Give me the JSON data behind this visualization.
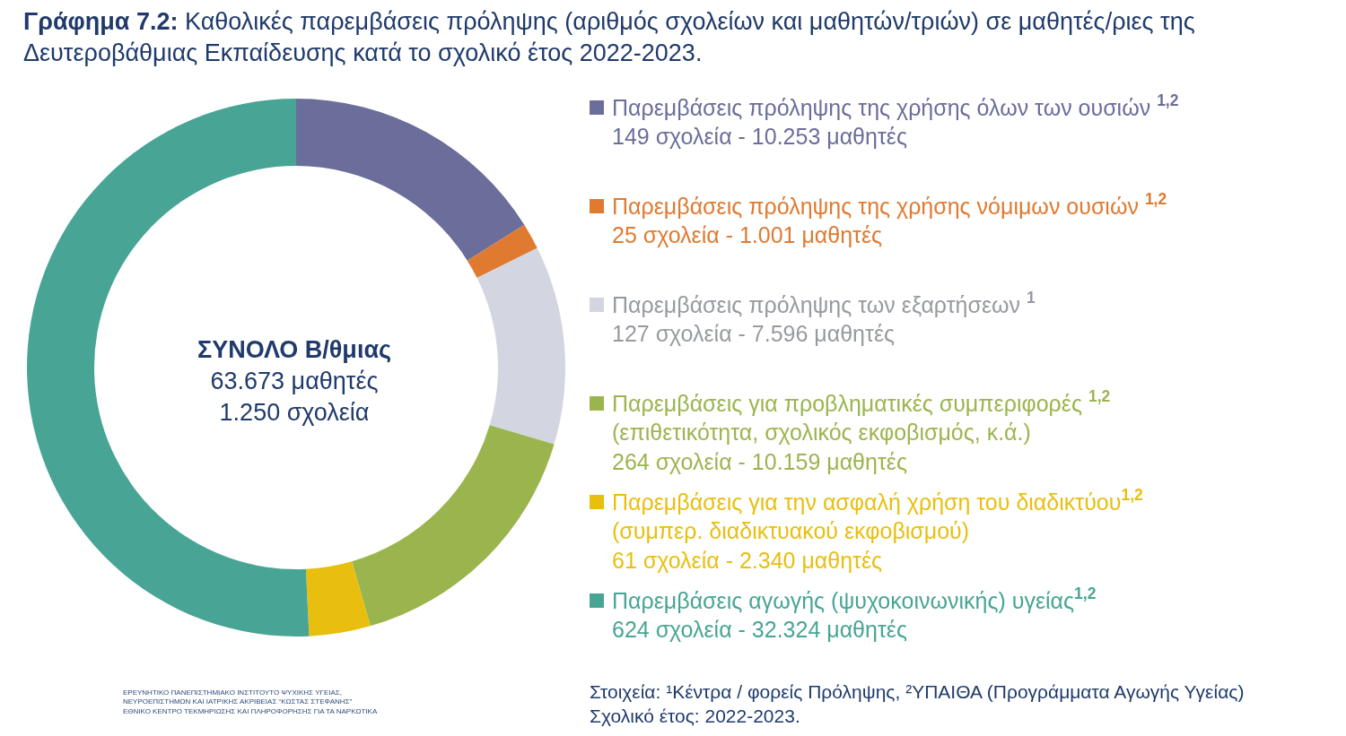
{
  "chart_data": {
    "type": "donut",
    "title": "Γράφημα 7.2: Καθολικές παρεμβάσεις πρόληψης (αριθμός σχολείων και μαθητών/τριών) σε μαθητές/ριες της\nΔευτεροβάθμιας Εκπαίδευσης κατά το σχολικό έτος 2022-2023.",
    "categories": [
      "Παρεμβάσεις πρόληψης της χρήσης όλων των ουσιών $^{1,2}$\n149 σχολεία - 10.253 μαθητές",
      "Παρεμβάσεις πρόληψης της χρήσης νόμιμων ουσιών $^{1,2}$\n25 σχολεία - 1.001 μαθητές",
      "Παρεμβάσεις πρόληψης των εξαρτήσεων $^{1}$\n127 σχολεία - 7.596 μαθητές",
      "Παρεμβάσεις για προβληματικές συμπεριφορές $^{1,2}$\n(επιθετικότητα, σχολικός εκφοβισμός, κ.ά.)\n264 σχολεία - 10.159 μαθητές",
      "Παρεμβάσεις για την ασφαλή χρήση του διαδικτύου$^{1,2}$\n(συμπερ. διαδικτυακού εκφοβισμού)\n61 σχολεία - 2.340 μαθητές",
      "Παρεμβάσεις αγωγής (ψυχοκοινωνικής) υγείας$^{1,2}$\n624 σχολεία - 32.324 μαθητές"
    ],
    "values": [
      16.1,
      1.57,
      11.93,
      15.95,
      3.68,
      50.77
    ],
    "colors": [
      "#6b6e9a",
      "#e07a30",
      "#d3d6e0",
      "#9bb54e",
      "#e8bf0e",
      "#48a595"
    ],
    "annotations": [
      "ΣΥΝΟΛΟ Β/θμιας\n63.673 μαθητές\n1.250 σχολεία",
      "Στοιχεία: ¹Κέντρα / φορείς Πρόληψης, ²ΥΠΑΙΘΑ (Προγράμματα Αγωγής Υγείας)\nΣχολικό έτος: 2022-2023.",
      "ΕΡΕΥΝΗΤΙΚΟ ΠΑΝΕΠΙΣΤΗΜΙΑΚΟ ΙΝΣΤΙΤΟΥΤΟ ΨΥΧΙΚΗΣ ΥΓΕΙΑΣ,\nΝΕΥΡΟΕΠΙΣΤΗΜΩΝ ΚΑΙ ΙΑΤΡΙΚΗΣ ΑΚΡΙΒΕΙΑΣ “ΚΩΣΤΑΣ ΣΤΕΦΑΝΗΣ”\nΕΘΝΙΚΟ ΚΕΝΤΡΟ ΤΕΚΜΗΡΙΩΣΗΣ ΚΑΙ ΠΛΗΡΟΦΟΡΗΣΗΣ ΓΙΑ ΤΑ ΝΑΡΚΩΤΙΚΑ"
    ]
  }
}
